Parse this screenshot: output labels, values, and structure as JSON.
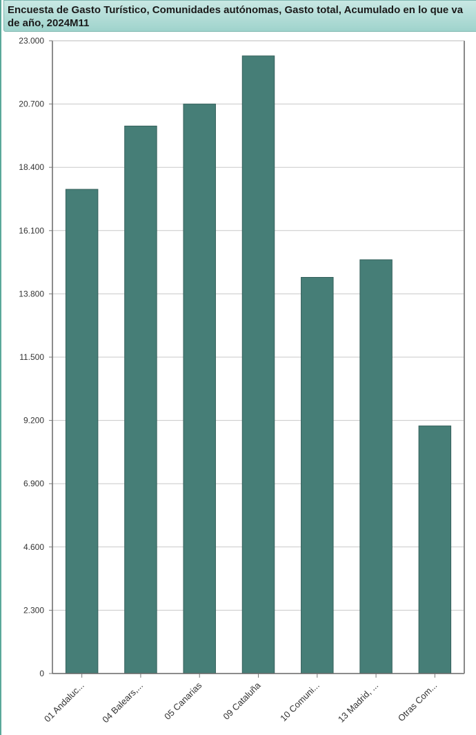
{
  "title": "Encuesta de Gasto Turístico, Comunidades autónomas, Gasto total, Acumulado en lo que va de año, 2024M11",
  "chart_data": {
    "type": "bar",
    "title": "Encuesta de Gasto Turístico, Comunidades autónomas, Gasto total, Acumulado en lo que va de año, 2024M11",
    "categories": [
      "01 Andaluc...",
      "04 Balears,...",
      "05 Canarias",
      "09 Cataluña",
      "10 Comuni...",
      "13 Madrid, ...",
      "Otras Com..."
    ],
    "values": [
      17600,
      19900,
      20700,
      22450,
      14400,
      15040,
      9000
    ],
    "ylim": [
      0,
      23000
    ],
    "yticks": [
      0,
      2300,
      4600,
      6900,
      9200,
      11500,
      13800,
      16100,
      18400,
      20700,
      23000
    ],
    "ytick_labels": [
      "0",
      "2.300",
      "4.600",
      "6.900",
      "9.200",
      "11.500",
      "13.800",
      "16.100",
      "18.400",
      "20.700",
      "23.000"
    ],
    "xlabel": "",
    "ylabel": "",
    "grid": true,
    "bar_color": "#467e77"
  }
}
